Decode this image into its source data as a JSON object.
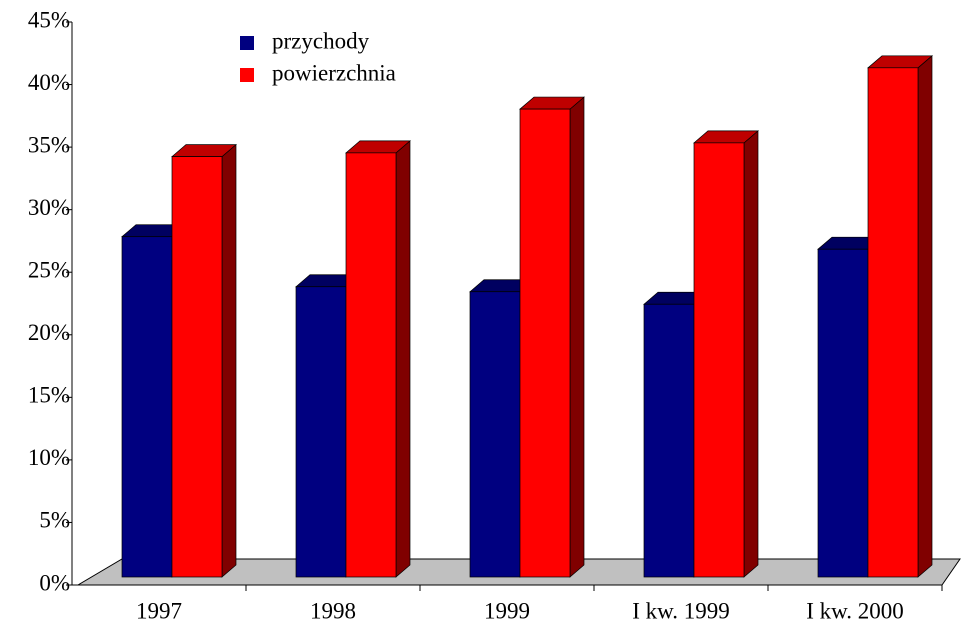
{
  "chart_data": {
    "type": "bar3d",
    "categories": [
      "1997",
      "1998",
      "1999",
      "I kw. 1999",
      "I kw. 2000"
    ],
    "series": [
      {
        "name": "przychody",
        "color": "#000080",
        "values": [
          27.2,
          23.2,
          22.8,
          21.8,
          26.2
        ]
      },
      {
        "name": "powierzchnia",
        "color": "#ff0000",
        "values": [
          33.6,
          33.9,
          37.4,
          34.7,
          40.7
        ]
      }
    ],
    "ylim": [
      0,
      45
    ],
    "yticks": [
      {
        "value": 0,
        "label": "0%"
      },
      {
        "value": 5,
        "label": "5%"
      },
      {
        "value": 10,
        "label": "10%"
      },
      {
        "value": 15,
        "label": "15%"
      },
      {
        "value": 20,
        "label": "20%"
      },
      {
        "value": 25,
        "label": "25%"
      },
      {
        "value": 30,
        "label": "30%"
      },
      {
        "value": 35,
        "label": "35%"
      },
      {
        "value": 40,
        "label": "40%"
      },
      {
        "value": 45,
        "label": "45%"
      }
    ],
    "legend": "top-left"
  }
}
